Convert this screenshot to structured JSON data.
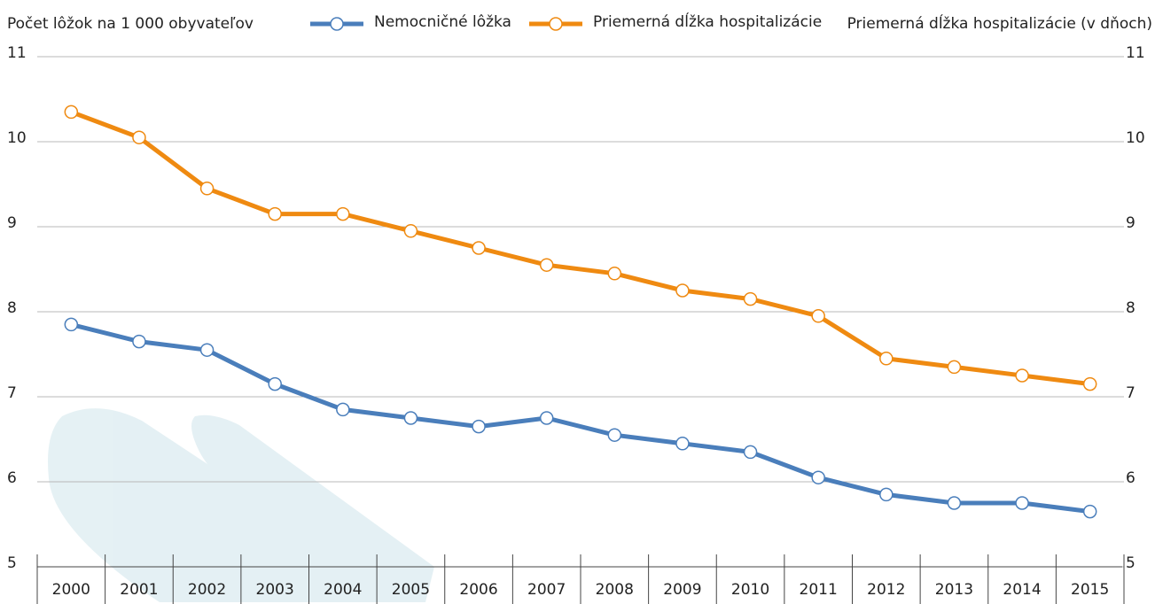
{
  "chart_data": {
    "type": "line",
    "y_label": "Počet lôžok na 1 000 obyvateľov",
    "y2_label": "Priemerná dĺžka hospitalizácie (v dňoch)",
    "categories": [
      "2000",
      "2001",
      "2002",
      "2003",
      "2004",
      "2005",
      "2006",
      "2007",
      "2008",
      "2009",
      "2010",
      "2011",
      "2012",
      "2013",
      "2014",
      "2015"
    ],
    "series": [
      {
        "name": "Nemocničné lôžka",
        "color": "#4a7ebb",
        "values": [
          7.85,
          7.65,
          7.55,
          7.15,
          6.85,
          6.75,
          6.65,
          6.75,
          6.55,
          6.45,
          6.35,
          6.05,
          5.85,
          5.75,
          5.75,
          5.65
        ]
      },
      {
        "name": "Priemerná dĺžka hospitalizácie",
        "color": "#ef8a11",
        "axis": "y2",
        "values": [
          10.35,
          10.05,
          9.45,
          9.15,
          9.15,
          8.95,
          8.75,
          8.55,
          8.45,
          8.25,
          8.15,
          7.95,
          7.45,
          7.35,
          7.25,
          7.15
        ]
      }
    ],
    "ylim": [
      5,
      11
    ],
    "yticks": [
      5,
      6,
      7,
      8,
      9,
      10,
      11
    ],
    "y2lim": [
      5,
      11
    ],
    "y2ticks": [
      5,
      6,
      7,
      8,
      9,
      10,
      11
    ],
    "grid": true
  }
}
